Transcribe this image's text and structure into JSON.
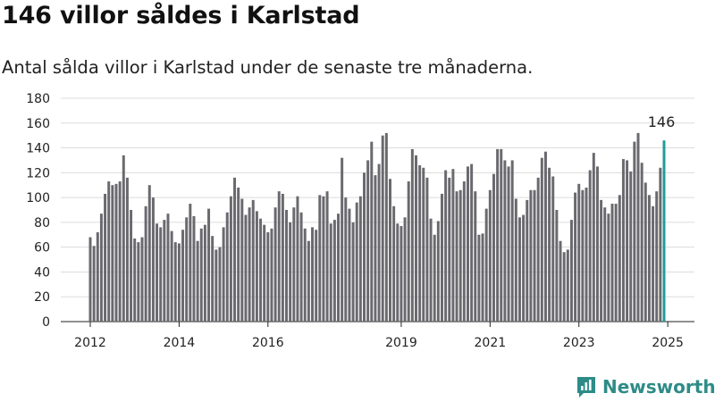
{
  "title": "146 villor såldes i Karlstad",
  "subtitle": "Antal sålda villor i Karlstad under de senaste tre månaderna.",
  "brand": {
    "name": "Newsworthy",
    "icon": "bar-chart-logo-icon",
    "color": "#2e8c87"
  },
  "colors": {
    "bar": "#6a696e",
    "highlight": "#1e9e99"
  },
  "chart_data": {
    "type": "bar",
    "ylim": [
      0,
      180
    ],
    "yticks": [
      0,
      20,
      40,
      60,
      80,
      100,
      120,
      140,
      160,
      180
    ],
    "xticks": [
      "2012",
      "2014",
      "2016",
      "2019",
      "2021",
      "2023",
      "2025"
    ],
    "grid": true,
    "annotation": "146",
    "values": [
      68,
      61,
      72,
      87,
      103,
      113,
      110,
      111,
      113,
      134,
      116,
      90,
      67,
      64,
      68,
      93,
      110,
      100,
      79,
      76,
      82,
      87,
      73,
      64,
      63,
      74,
      84,
      95,
      85,
      65,
      75,
      78,
      91,
      69,
      58,
      60,
      76,
      88,
      101,
      116,
      108,
      99,
      86,
      92,
      98,
      89,
      83,
      78,
      72,
      75,
      92,
      105,
      103,
      90,
      80,
      92,
      101,
      88,
      75,
      65,
      76,
      74,
      102,
      101,
      105,
      79,
      82,
      87,
      132,
      100,
      91,
      80,
      96,
      101,
      120,
      130,
      145,
      118,
      127,
      150,
      152,
      115,
      93,
      79,
      77,
      84,
      113,
      139,
      134,
      126,
      124,
      116,
      83,
      70,
      81,
      103,
      122,
      116,
      123,
      105,
      106,
      113,
      125,
      127,
      105,
      70,
      71,
      91,
      106,
      119,
      139,
      139,
      130,
      125,
      130,
      99,
      84,
      86,
      98,
      106,
      106,
      116,
      132,
      137,
      124,
      117,
      90,
      65,
      56,
      58,
      82,
      104,
      111,
      106,
      108,
      122,
      136,
      125,
      98,
      92,
      87,
      95,
      95,
      102,
      131,
      130,
      121,
      145,
      152,
      128,
      112,
      102,
      93,
      105,
      124,
      146
    ]
  }
}
